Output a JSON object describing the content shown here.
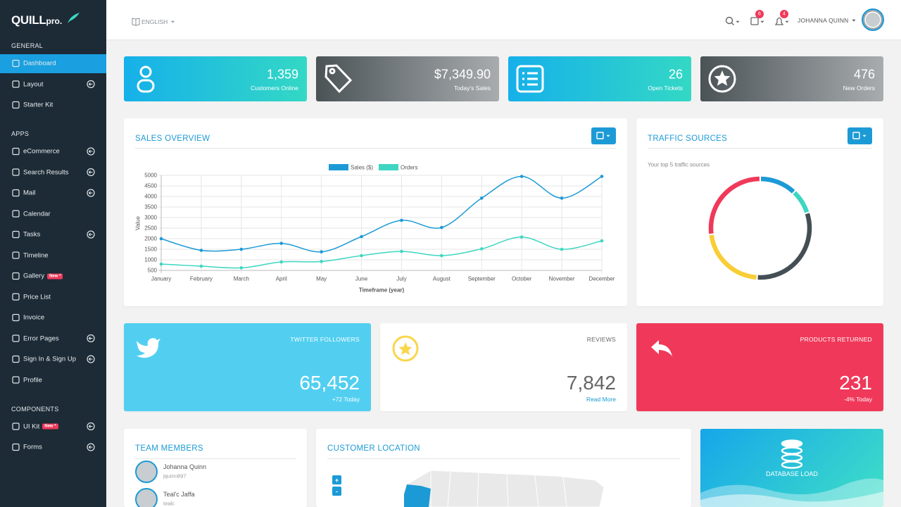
{
  "sidebar": {
    "logo": {
      "name": "QUILL",
      "suffix": "pro."
    },
    "sections": [
      {
        "title": "GENERAL",
        "items": [
          {
            "label": "Dashboard",
            "active": true
          },
          {
            "label": "Layout",
            "submenu": true
          },
          {
            "label": "Starter Kit"
          }
        ]
      },
      {
        "title": "APPS",
        "items": [
          {
            "label": "eCommerce",
            "submenu": true
          },
          {
            "label": "Search Results",
            "submenu": true
          },
          {
            "label": "Mail",
            "submenu": true
          },
          {
            "label": "Calendar"
          },
          {
            "label": "Tasks",
            "submenu": true
          },
          {
            "label": "Timeline"
          },
          {
            "label": "Gallery",
            "badge": "New *"
          },
          {
            "label": "Price List"
          },
          {
            "label": "Invoice"
          },
          {
            "label": "Error Pages",
            "submenu": true
          },
          {
            "label": "Sign In & Sign Up",
            "submenu": true
          },
          {
            "label": "Profile"
          }
        ]
      },
      {
        "title": "COMPONENTS",
        "items": [
          {
            "label": "UI Kit",
            "badge": "New *",
            "submenu": true
          },
          {
            "label": "Forms",
            "submenu": true
          }
        ]
      }
    ]
  },
  "header": {
    "language": "ENGLISH",
    "notifications": [
      6,
      4
    ],
    "user": "JOHANNA QUINN"
  },
  "stats": [
    {
      "value": "1,359",
      "label": "Customers Online"
    },
    {
      "value": "$7,349.90",
      "label": "Today's Sales"
    },
    {
      "value": "26",
      "label": "Open Tickets"
    },
    {
      "value": "476",
      "label": "New Orders"
    }
  ],
  "chart_data": [
    {
      "type": "line",
      "title": "SALES OVERVIEW",
      "x_label": "Timeframe (year)",
      "y_label": "Value",
      "categories": [
        "January",
        "February",
        "March",
        "April",
        "May",
        "June",
        "July",
        "August",
        "September",
        "October",
        "November",
        "December"
      ],
      "series": [
        {
          "name": "Sales ($)",
          "color": "#1c9ad6",
          "values": [
            2000,
            1450,
            1500,
            1780,
            1380,
            2100,
            2870,
            2530,
            3920,
            4950,
            3920,
            4950
          ]
        },
        {
          "name": "Orders",
          "color": "#3ed6c1",
          "values": [
            800,
            700,
            620,
            900,
            920,
            1200,
            1400,
            1200,
            1520,
            2080,
            1500,
            1900
          ]
        }
      ],
      "ylim": [
        500,
        5000
      ],
      "yticks": [
        500,
        1000,
        1500,
        2000,
        2500,
        3000,
        3500,
        4000,
        4500,
        5000
      ],
      "grid": true,
      "legend": "top"
    },
    {
      "type": "doughnut",
      "title": "TRAFFIC SOURCES",
      "subtitle": "Your top 5 traffic sources",
      "values": [
        12,
        8,
        31,
        22,
        27
      ],
      "colors": [
        "#1c9ad6",
        "#3ed6c1",
        "#444f55",
        "#f9cd35",
        "#f0395a"
      ]
    }
  ],
  "widgets": [
    {
      "title": "TWITTER FOLLOWERS",
      "value": "65,452",
      "note": "+72 Today"
    },
    {
      "title": "REVIEWS",
      "value": "7,842",
      "note": "Read More"
    },
    {
      "title": "PRODUCTS RETURNED",
      "value": "231",
      "note": "-4% Today"
    }
  ],
  "team": {
    "title": "TEAM MEMBERS",
    "members": [
      {
        "name": "Johanna Quinn",
        "username": "jquinn897"
      },
      {
        "name": "Teal'c Jaffa",
        "username": "tealc"
      }
    ]
  },
  "customer_location": {
    "title": "CUSTOMER LOCATION",
    "zoom_in": "+",
    "zoom_out": "-"
  },
  "database": {
    "title": "DATABASE LOAD"
  }
}
